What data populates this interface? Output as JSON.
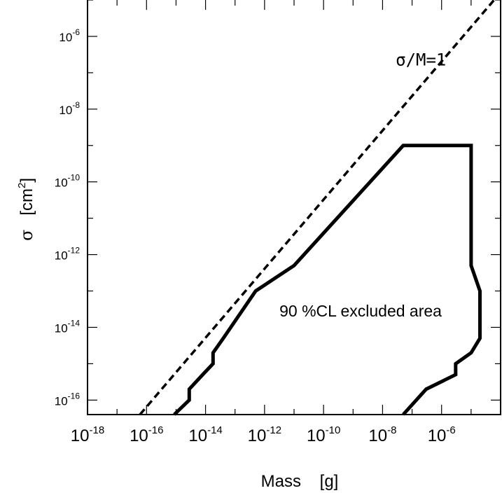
{
  "chart_data": {
    "type": "line",
    "xlabel": "Mass    [g]",
    "ylabel_symbol": "σ",
    "ylabel_unit": "[cm",
    "ylabel_unit_sup": "2",
    "ylabel_unit_close": "]",
    "x_scale": "log",
    "y_scale": "log",
    "xlim": [
      1e-18,
      0.0001
    ],
    "ylim": [
      4e-17,
      1e-05
    ],
    "grid": false,
    "x_ticks": [
      {
        "base": "10",
        "exp": "-18"
      },
      {
        "base": "10",
        "exp": "-16"
      },
      {
        "base": "10",
        "exp": "-14"
      },
      {
        "base": "10",
        "exp": "-12"
      },
      {
        "base": "10",
        "exp": "-10"
      },
      {
        "base": "10",
        "exp": "-8"
      },
      {
        "base": "10",
        "exp": "-6"
      }
    ],
    "y_ticks": [
      {
        "base": "10",
        "exp": "-6"
      },
      {
        "base": "10",
        "exp": "-8"
      },
      {
        "base": "10",
        "exp": "-10"
      },
      {
        "base": "10",
        "exp": "-12"
      },
      {
        "base": "10",
        "exp": "-14"
      },
      {
        "base": "10",
        "exp": "-16"
      }
    ],
    "series": [
      {
        "style": "dashed",
        "x": [
          6e-17,
          6e-05
        ],
        "y": [
          4e-17,
          1e-05
        ]
      },
      {
        "style": "solid",
        "x": [
          8.7e-16,
          2.8e-15,
          2.8e-15,
          8e-15,
          1.8e-14,
          1.8e-14,
          4e-14,
          5e-13,
          1e-11,
          5e-08,
          1e-05,
          1e-05,
          2e-05,
          2e-05,
          1e-05,
          3e-06,
          3e-06,
          3e-07,
          5e-08
        ],
        "y": [
          4e-17,
          1e-16,
          2e-16,
          5e-16,
          1e-15,
          2e-15,
          5e-15,
          1e-13,
          5e-13,
          1e-09,
          1e-09,
          5e-13,
          1e-13,
          5e-15,
          2e-15,
          1e-15,
          5e-16,
          2e-16,
          4e-17
        ]
      }
    ],
    "annotations": [
      {
        "text": "σ/M=1",
        "x": 2e-07,
        "y": 1.6e-07,
        "font": "mono"
      },
      {
        "text": "90 %CL excluded area",
        "x": 1.8e-09,
        "y": 2e-14,
        "font": "sans"
      }
    ]
  }
}
